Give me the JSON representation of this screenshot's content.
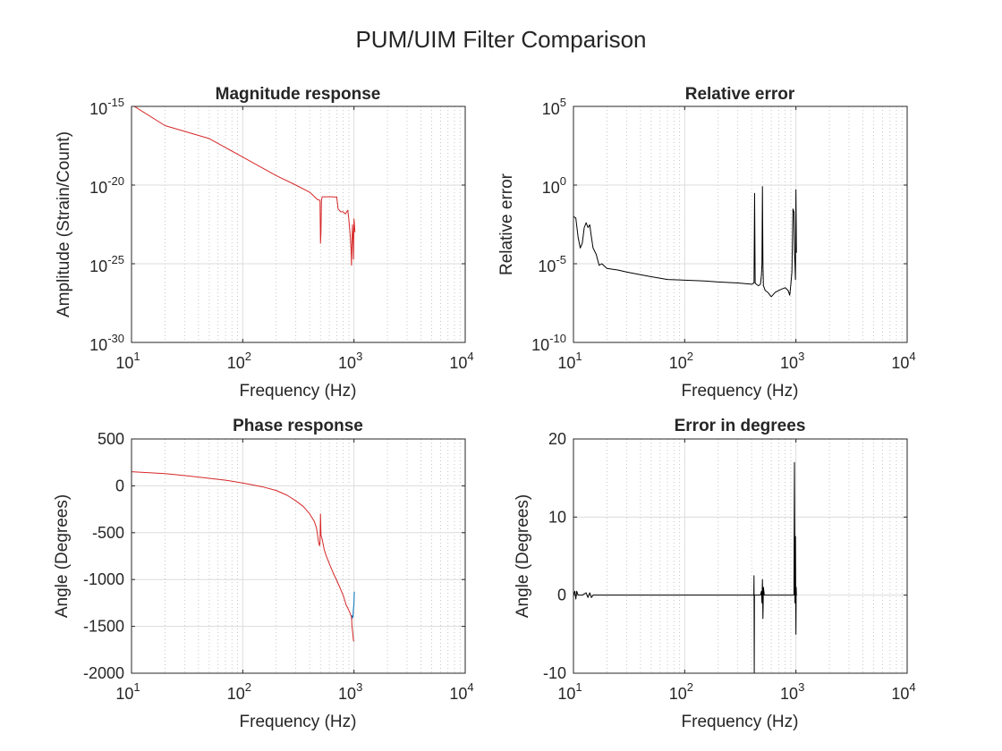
{
  "figure": {
    "title": "PUM/UIM Filter Comparison"
  },
  "chart_data": [
    {
      "type": "line",
      "title": "Magnitude response",
      "xlabel": "Frequency (Hz)",
      "ylabel": "Amplitude (Strain/Count)",
      "xscale": "log",
      "yscale": "log",
      "xlim": [
        10,
        10000
      ],
      "ylim": [
        1e-30,
        1e-15
      ],
      "xticks": [
        10,
        100,
        1000,
        10000
      ],
      "xtick_labels": [
        {
          "base": "10",
          "exp": "1"
        },
        {
          "base": "10",
          "exp": "2"
        },
        {
          "base": "10",
          "exp": "3"
        },
        {
          "base": "10",
          "exp": "4"
        }
      ],
      "yticks": [
        1e-30,
        1e-25,
        1e-20,
        1e-15
      ],
      "ytick_labels": [
        {
          "base": "10",
          "exp": "-30"
        },
        {
          "base": "10",
          "exp": "-25"
        },
        {
          "base": "10",
          "exp": "-20"
        },
        {
          "base": "10",
          "exp": "-15"
        }
      ],
      "grid": true,
      "series": [
        {
          "color": "#d62728",
          "x": [
            10,
            20,
            50,
            100,
            200,
            300,
            400,
            470,
            490,
            495,
            500,
            505,
            510,
            515,
            520,
            560,
            600,
            640,
            700,
            720,
            760,
            800,
            830,
            840,
            860,
            880,
            900,
            920,
            940,
            950,
            960,
            970,
            980,
            990,
            1000,
            1010,
            1020
          ],
          "y": [
            1.3e-15,
            6e-17,
            9e-18,
            6e-19,
            4e-20,
            1e-20,
            3.5e-21,
            1.2e-21,
            1.1e-21,
            1e-21,
            2e-24,
            1e-23,
            1e-21,
            1.6e-21,
            1.8e-21,
            1.8e-21,
            1.8e-21,
            1.8e-21,
            1.7e-21,
            3e-22,
            2e-22,
            2e-22,
            1.5e-22,
            1.5e-22,
            2e-22,
            2.5e-22,
            6e-23,
            1e-23,
            1e-24,
            8e-26,
            3e-24,
            3e-23,
            5e-24,
            2e-25,
            7e-23,
            3e-23,
            1e-23
          ]
        }
      ]
    },
    {
      "type": "line",
      "title": "Relative error",
      "xlabel": "Frequency (Hz)",
      "ylabel": "Relative error",
      "xscale": "log",
      "yscale": "log",
      "xlim": [
        10,
        10000
      ],
      "ylim": [
        1e-10,
        100000.0
      ],
      "xticks": [
        10,
        100,
        1000,
        10000
      ],
      "xtick_labels": [
        {
          "base": "10",
          "exp": "1"
        },
        {
          "base": "10",
          "exp": "2"
        },
        {
          "base": "10",
          "exp": "3"
        },
        {
          "base": "10",
          "exp": "4"
        }
      ],
      "yticks": [
        1e-10,
        1e-05,
        1,
        100000.0
      ],
      "ytick_labels": [
        {
          "base": "10",
          "exp": "-10"
        },
        {
          "base": "10",
          "exp": "-5"
        },
        {
          "base": "10",
          "exp": "0"
        },
        {
          "base": "10",
          "exp": "5"
        }
      ],
      "grid": true,
      "series": [
        {
          "color": "#000000",
          "x": [
            10,
            10.5,
            11,
            11.5,
            12,
            12.5,
            13,
            13.5,
            14,
            14.5,
            15,
            16,
            17,
            18,
            20,
            25,
            30,
            40,
            50,
            70,
            100,
            150,
            200,
            300,
            400,
            420,
            425,
            430,
            440,
            460,
            480,
            490,
            495,
            500,
            505,
            510,
            530,
            560,
            600,
            650,
            700,
            750,
            800,
            850,
            880,
            900,
            920,
            940,
            960,
            970,
            980,
            990,
            1000,
            1010
          ],
          "y": [
            0.01,
            0.008,
            0.0005,
            0.0001,
            0.0002,
            0.002,
            0.004,
            0.002,
            0.003,
            0.0005,
            0.0001,
            4e-05,
            8e-06,
            1e-05,
            5e-06,
            4e-06,
            3e-06,
            2e-06,
            1.5e-06,
            1e-06,
            9e-07,
            8e-07,
            7e-07,
            6e-07,
            5e-07,
            6e-07,
            0.3,
            6e-07,
            5e-07,
            4e-07,
            5e-07,
            2e-06,
            1e-05,
            0.8,
            1e-05,
            4e-07,
            2e-07,
            1.5e-07,
            8e-08,
            1.5e-07,
            2e-07,
            2.5e-07,
            3e-07,
            2e-07,
            1e-07,
            5e-07,
            3e-06,
            0.03,
            0.02,
            5e-05,
            1e-05,
            1e-06,
            0.5,
            5e-05
          ]
        }
      ]
    },
    {
      "type": "line",
      "title": "Phase response",
      "xlabel": "Frequency (Hz)",
      "ylabel": "Angle (Degrees)",
      "xscale": "log",
      "yscale": "linear",
      "xlim": [
        10,
        10000
      ],
      "ylim": [
        -2000,
        500
      ],
      "xticks": [
        10,
        100,
        1000,
        10000
      ],
      "xtick_labels": [
        {
          "base": "10",
          "exp": "1"
        },
        {
          "base": "10",
          "exp": "2"
        },
        {
          "base": "10",
          "exp": "3"
        },
        {
          "base": "10",
          "exp": "4"
        }
      ],
      "yticks": [
        -2000,
        -1500,
        -1000,
        -500,
        0,
        500
      ],
      "ytick_labels": [
        "-2000",
        "-1500",
        "-1000",
        "-500",
        "0",
        "500"
      ],
      "grid": true,
      "series": [
        {
          "color": "#0072bd",
          "x": [
            950,
            960,
            970,
            980,
            990,
            1000,
            1005,
            1010
          ],
          "y": [
            -1380,
            -1420,
            -1390,
            -1400,
            -1300,
            -1260,
            -1150,
            -1130
          ]
        },
        {
          "color": "#d62728",
          "x": [
            10,
            20,
            30,
            50,
            70,
            100,
            150,
            200,
            250,
            300,
            350,
            400,
            440,
            460,
            470,
            480,
            490,
            495,
            500,
            505,
            510,
            515,
            520,
            540,
            560,
            600,
            650,
            700,
            750,
            800,
            850,
            900,
            930,
            950,
            960,
            970,
            980,
            990,
            1000
          ],
          "y": [
            150,
            130,
            110,
            80,
            60,
            30,
            -10,
            -50,
            -100,
            -160,
            -220,
            -300,
            -380,
            -450,
            -520,
            -600,
            -640,
            -600,
            -300,
            -520,
            -550,
            -560,
            -580,
            -680,
            -740,
            -830,
            -930,
            -1010,
            -1090,
            -1170,
            -1270,
            -1330,
            -1370,
            -1400,
            -1500,
            -1550,
            -1600,
            -1650,
            -1660
          ]
        }
      ]
    },
    {
      "type": "line",
      "title": "Error in degrees",
      "xlabel": "Frequency (Hz)",
      "ylabel": "Angle (Degrees)",
      "xscale": "log",
      "yscale": "linear",
      "xlim": [
        10,
        10000
      ],
      "ylim": [
        -10,
        20
      ],
      "xticks": [
        10,
        100,
        1000,
        10000
      ],
      "xtick_labels": [
        {
          "base": "10",
          "exp": "1"
        },
        {
          "base": "10",
          "exp": "2"
        },
        {
          "base": "10",
          "exp": "3"
        },
        {
          "base": "10",
          "exp": "4"
        }
      ],
      "yticks": [
        -10,
        0,
        10,
        20
      ],
      "ytick_labels": [
        "-10",
        "0",
        "10",
        "20"
      ],
      "grid": true,
      "series": [
        {
          "color": "#000000",
          "x": [
            10,
            10.3,
            10.5,
            10.7,
            11,
            12,
            13,
            13.5,
            14,
            14.5,
            15,
            20,
            50,
            100,
            200,
            300,
            400,
            418,
            420,
            422,
            424,
            440,
            480,
            490,
            495,
            500,
            505,
            510,
            520,
            600,
            700,
            800,
            900,
            950,
            960,
            970,
            980,
            985,
            990,
            995,
            1000,
            1005,
            1010,
            1020
          ],
          "y": [
            0,
            0.5,
            -0.5,
            0.5,
            0,
            0,
            0.3,
            -0.3,
            0.3,
            -0.3,
            0,
            0,
            0,
            0,
            0,
            0,
            0,
            0,
            2.5,
            -10,
            0,
            0,
            0,
            0.5,
            -1,
            2,
            -3,
            1,
            0,
            0,
            0,
            0,
            0,
            0,
            0,
            17,
            -1,
            0,
            7.5,
            0,
            -5,
            1,
            0,
            0
          ]
        }
      ]
    }
  ]
}
